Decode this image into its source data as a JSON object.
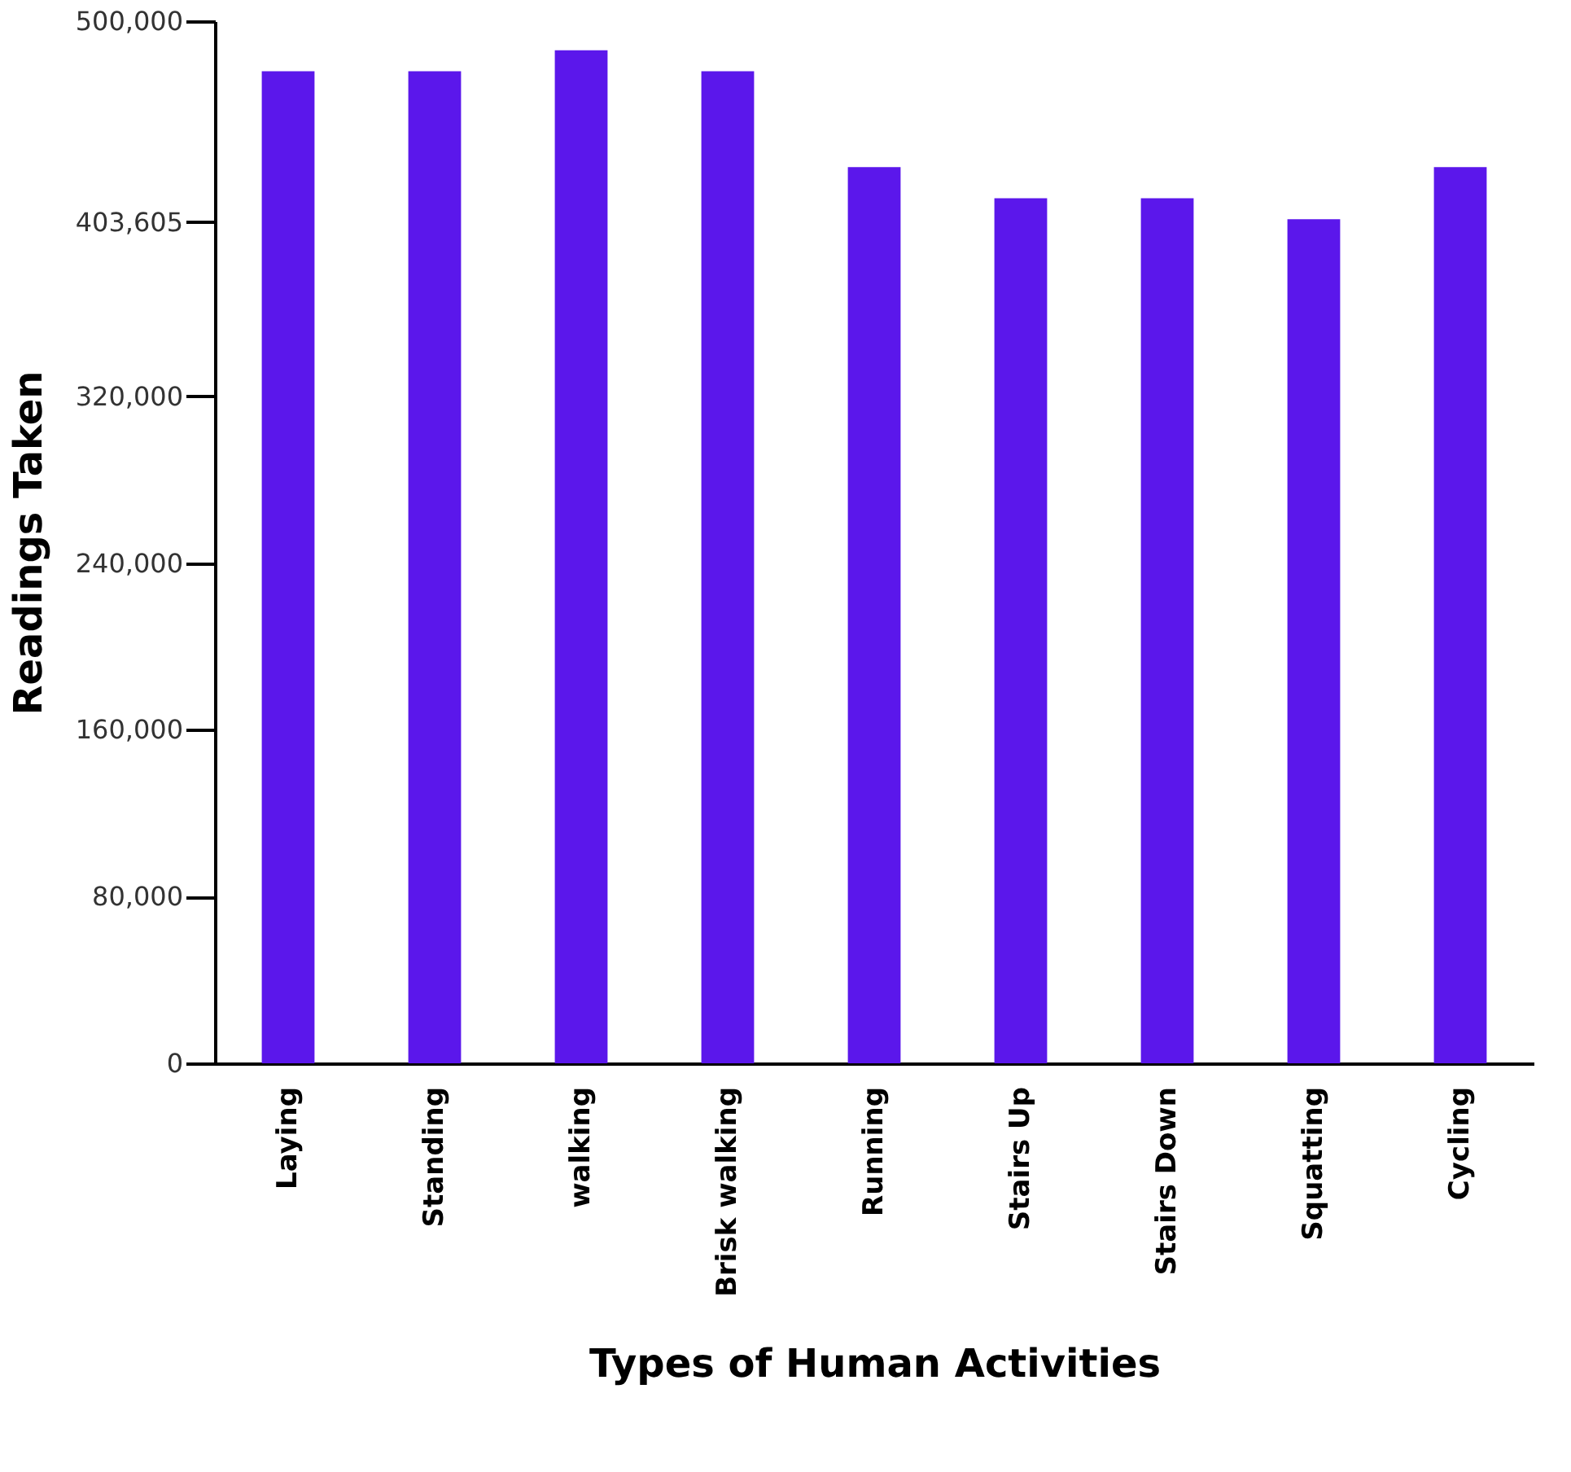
{
  "chart_data": {
    "type": "bar",
    "xlabel": "Types of Human Activities",
    "ylabel": "Readings Taken",
    "categories": [
      "Laying",
      "Standing",
      "walking",
      "Brisk walking",
      "Running",
      "Stairs Up",
      "Stairs Down",
      "Squatting",
      "Cycling"
    ],
    "values": [
      476000,
      476000,
      486000,
      476000,
      430000,
      415000,
      415000,
      405000,
      430000
    ],
    "color": "#5b17eb",
    "ylim": [
      0,
      500000
    ],
    "yticks": [
      0,
      {
        "value": 80000,
        "label": "80,000"
      },
      {
        "value": 160000,
        "label": "160,000"
      },
      {
        "value": 240000,
        "label": "240,000"
      },
      {
        "value": 320000,
        "label": "320,000"
      },
      {
        "value": 403605,
        "label": "403,605"
      },
      {
        "value": 500000,
        "label": "500,000"
      }
    ],
    "grid": false
  }
}
